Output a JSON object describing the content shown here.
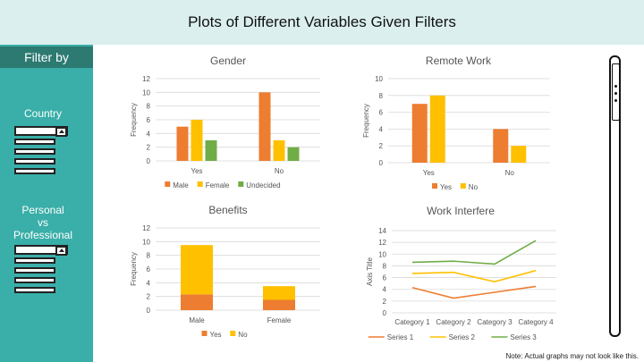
{
  "header": {
    "title": "Plots of Different Variables Given Filters"
  },
  "sidebar": {
    "filter_title": "Filter by",
    "filter_1_label": "Country",
    "filter_2_label_line1": "Personal",
    "filter_2_label_line2": "vs",
    "filter_2_label_line3": "Professional"
  },
  "footer": {
    "note": "Note: Actual graphs may not look like this."
  },
  "colors": {
    "sidebar": "#3aaea8",
    "filter_header": "#2c7a72",
    "header": "#dcefef",
    "orange": "#ed7d31",
    "yellow": "#ffc000",
    "green": "#70ad47"
  },
  "chart_data": [
    {
      "id": "gender",
      "type": "bar",
      "title": "Gender",
      "xlabel": "",
      "ylabel": "Frequency",
      "categories": [
        "Yes",
        "No"
      ],
      "ylim": [
        0,
        12
      ],
      "yticks": [
        0,
        2,
        4,
        6,
        8,
        10,
        12
      ],
      "series": [
        {
          "name": "Male",
          "color": "#ed7d31",
          "values": [
            5,
            10
          ]
        },
        {
          "name": "Female",
          "color": "#ffc000",
          "values": [
            6,
            3
          ]
        },
        {
          "name": "Undecided",
          "color": "#70ad47",
          "values": [
            3,
            2
          ]
        }
      ],
      "legend": "bottom",
      "grid": true
    },
    {
      "id": "remote",
      "type": "bar",
      "title": "Remote Work",
      "xlabel": "",
      "ylabel": "Frequency",
      "categories": [
        "Yes",
        "No"
      ],
      "ylim": [
        0,
        10
      ],
      "yticks": [
        0,
        2,
        4,
        6,
        8,
        10
      ],
      "series": [
        {
          "name": "Yes",
          "color": "#ed7d31",
          "values": [
            7,
            4
          ]
        },
        {
          "name": "No",
          "color": "#ffc000",
          "values": [
            8,
            2
          ]
        }
      ],
      "legend": "bottom",
      "grid": true
    },
    {
      "id": "benefits",
      "type": "stacked-bar",
      "title": "Benefits",
      "xlabel": "",
      "ylabel": "Frequency",
      "categories": [
        "Male",
        "Female"
      ],
      "ylim": [
        0,
        12
      ],
      "yticks": [
        0,
        2,
        4,
        6,
        8,
        10,
        12
      ],
      "series": [
        {
          "name": "Yes",
          "color": "#ed7d31",
          "values": [
            2.3,
            1.5
          ]
        },
        {
          "name": "No",
          "color": "#ffc000",
          "values": [
            7.2,
            2
          ]
        }
      ],
      "legend": "bottom",
      "grid": true
    },
    {
      "id": "interfere",
      "type": "line",
      "title": "Work Interfere",
      "xlabel": "",
      "ylabel": "Axis Title",
      "categories": [
        "Category 1",
        "Category 2",
        "Category 3",
        "Category 4"
      ],
      "ylim": [
        0,
        14
      ],
      "yticks": [
        0,
        2,
        4,
        6,
        8,
        10,
        12,
        14
      ],
      "series": [
        {
          "name": "Series 1",
          "color": "#ed7d31",
          "values": [
            4.3,
            2.5,
            3.5,
            4.5
          ]
        },
        {
          "name": "Series 2",
          "color": "#ffc000",
          "values": [
            6.7,
            6.9,
            5.3,
            7.2
          ]
        },
        {
          "name": "Series 3",
          "color": "#70ad47",
          "values": [
            8.6,
            8.8,
            8.3,
            12.3
          ]
        }
      ],
      "legend": "bottom",
      "grid": true
    }
  ]
}
